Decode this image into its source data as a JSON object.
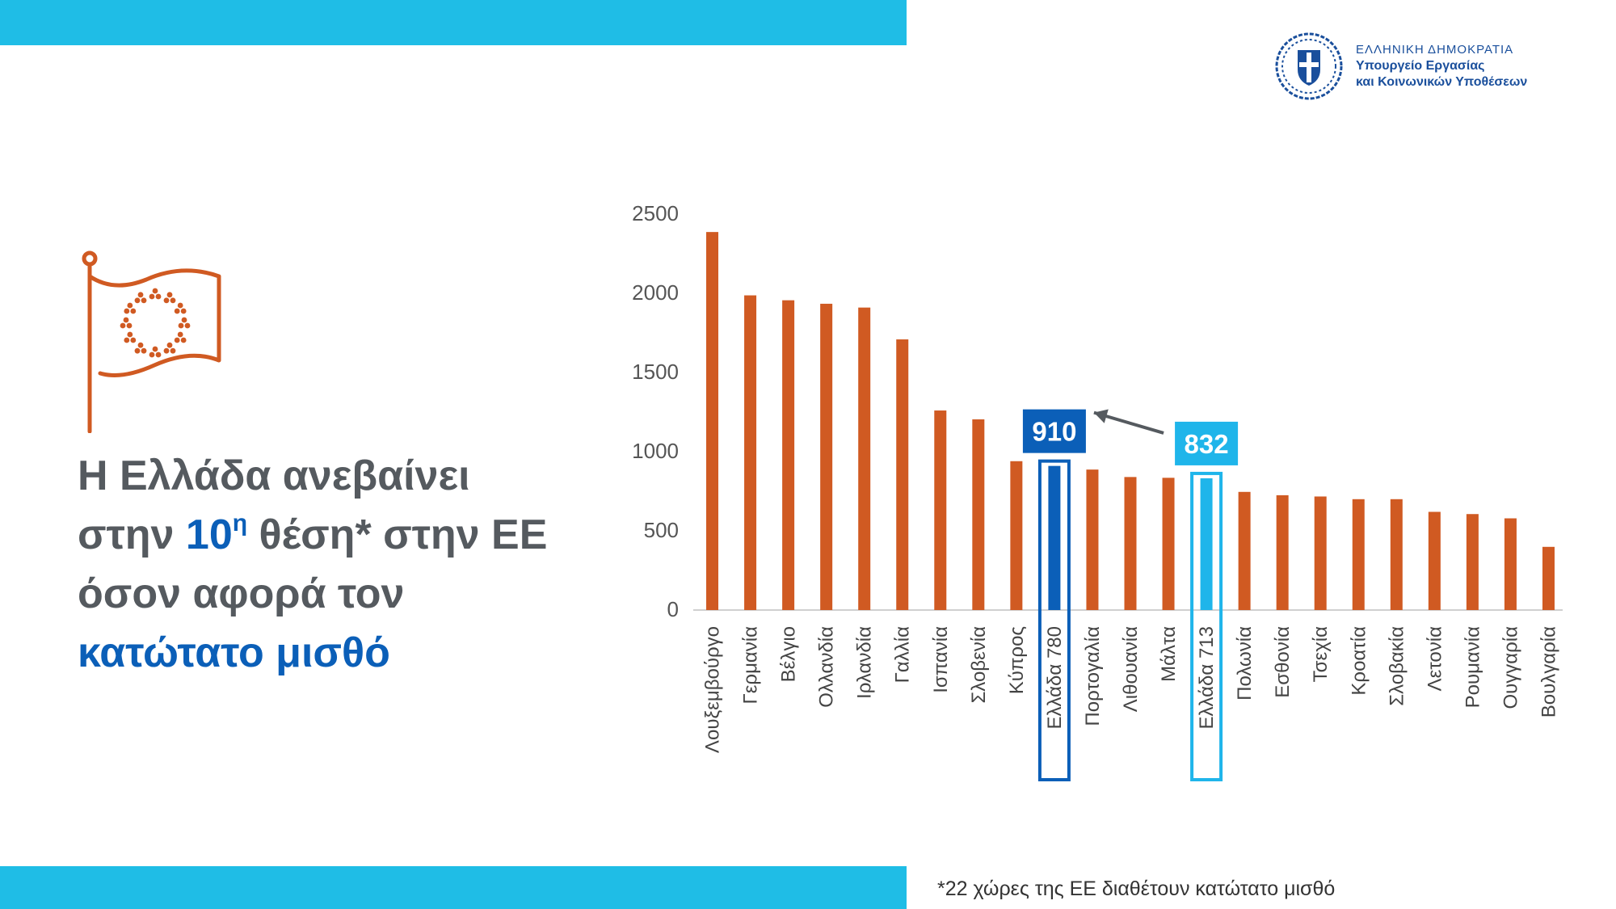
{
  "ministry": {
    "line1": "ΕΛΛΗΝΙΚΗ ΔΗΜΟΚΡΑΤΙΑ",
    "line2": "Υπουργείο Εργασίας",
    "line3": "και Κοινωνικών Υποθέσεων",
    "emblem_icon": "greek-coat-of-arms-icon"
  },
  "flag_icon": "eu-flag-icon",
  "headline": {
    "part1": "Η Ελλάδα ανεβαίνει",
    "part2a": "στην ",
    "part2_rank": "10",
    "part2_sup": "η",
    "part2b": " θέση* στην ΕΕ",
    "part3": "όσον αφορά τον",
    "part4": "κατώτατο μισθό"
  },
  "footnote": "*22 χώρες της ΕΕ διαθέτουν κατώτατο μισθό",
  "colors": {
    "band": "#1FBDE6",
    "bar": "#D05A22",
    "greece_new": "#0B5FB8",
    "greece_old": "#1FB5EA",
    "headline_gray": "#555a5f",
    "headline_blue": "#0B5FB8",
    "ministry_blue": "#1A4F9C"
  },
  "chart_data": {
    "type": "bar",
    "categories": [
      "Λουξεμβούργο",
      "Γερμανία",
      "Βέλγιο",
      "Ολλανδία",
      "Ιρλανδία",
      "Γαλλία",
      "Ισπανία",
      "Σλοβενία",
      "Κύπρος",
      "Ελλάδα 780",
      "Πορτογαλία",
      "Λιθουανία",
      "Μάλτα",
      "Ελλάδα 713",
      "Πολωνία",
      "Εσθονία",
      "Τσεχία",
      "Κροατία",
      "Σλοβακία",
      "Λετονία",
      "Ρουμανία",
      "Ουγγαρία",
      "Βουλγαρία"
    ],
    "values": [
      2387,
      1987,
      1956,
      1934,
      1910,
      1709,
      1260,
      1204,
      940,
      910,
      887,
      840,
      835,
      832,
      746,
      725,
      717,
      700,
      700,
      620,
      606,
      579,
      399
    ],
    "highlight": {
      "Ελλάδα 780": "greece_new",
      "Ελλάδα 713": "greece_old"
    },
    "callouts": [
      {
        "category": "Ελλάδα 780",
        "label": "910"
      },
      {
        "category": "Ελλάδα 713",
        "label": "832"
      }
    ],
    "yticks": [
      0,
      500,
      1000,
      1500,
      2000,
      2500
    ],
    "ylim": [
      0,
      2500
    ],
    "grid": false,
    "legend": "none"
  }
}
